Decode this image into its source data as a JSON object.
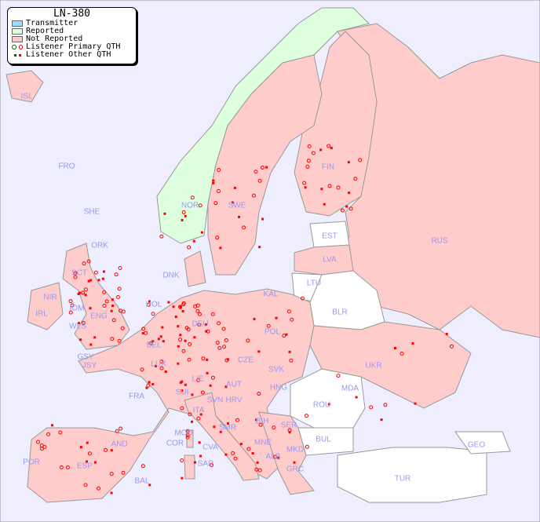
{
  "title": "LN-380",
  "legend": {
    "items": [
      {
        "label": "Transmitter",
        "color": "#99ddff"
      },
      {
        "label": "Reported",
        "color": "#ddffdd"
      },
      {
        "label": "Not Reported",
        "color": "#ffcccc"
      },
      {
        "label": "Listener Primary QTH",
        "colors": [
          "#006600",
          "#ff0000"
        ]
      },
      {
        "label": "Listener Other QTH",
        "colors": [
          "#006600",
          "#ff0000"
        ]
      }
    ]
  },
  "colors": {
    "sea": "#eeeeff",
    "not_reported": "#ffcccc",
    "reported": "#ddffdd",
    "no_data": "#ffffff",
    "marker": "#ff0000",
    "label": "#9999ee"
  },
  "countries": [
    "ISL",
    "FRO",
    "SHE",
    "ORK",
    "NOR",
    "SWE",
    "FIN",
    "EST",
    "LVA",
    "LTU",
    "KAL",
    "RUS",
    "BLR",
    "UKR",
    "MDA",
    "ROU",
    "BUL",
    "TUR",
    "GEO",
    "GRC",
    "ALB",
    "MKD",
    "MNE",
    "SER",
    "BIH",
    "HRV",
    "HNG",
    "SVK",
    "CZE",
    "AUT",
    "SVN",
    "POL",
    "DNK",
    "DEU",
    "HOL",
    "BEL",
    "LUX",
    "FRA",
    "SUI",
    "LIE",
    "ITA",
    "MCO",
    "COR",
    "SAR",
    "CVA",
    "SMR",
    "BAL",
    "ESP",
    "POR",
    "AND",
    "IRL",
    "NIR",
    "IOM",
    "WLS",
    "ENG",
    "SCT",
    "GSY",
    "JSY"
  ]
}
